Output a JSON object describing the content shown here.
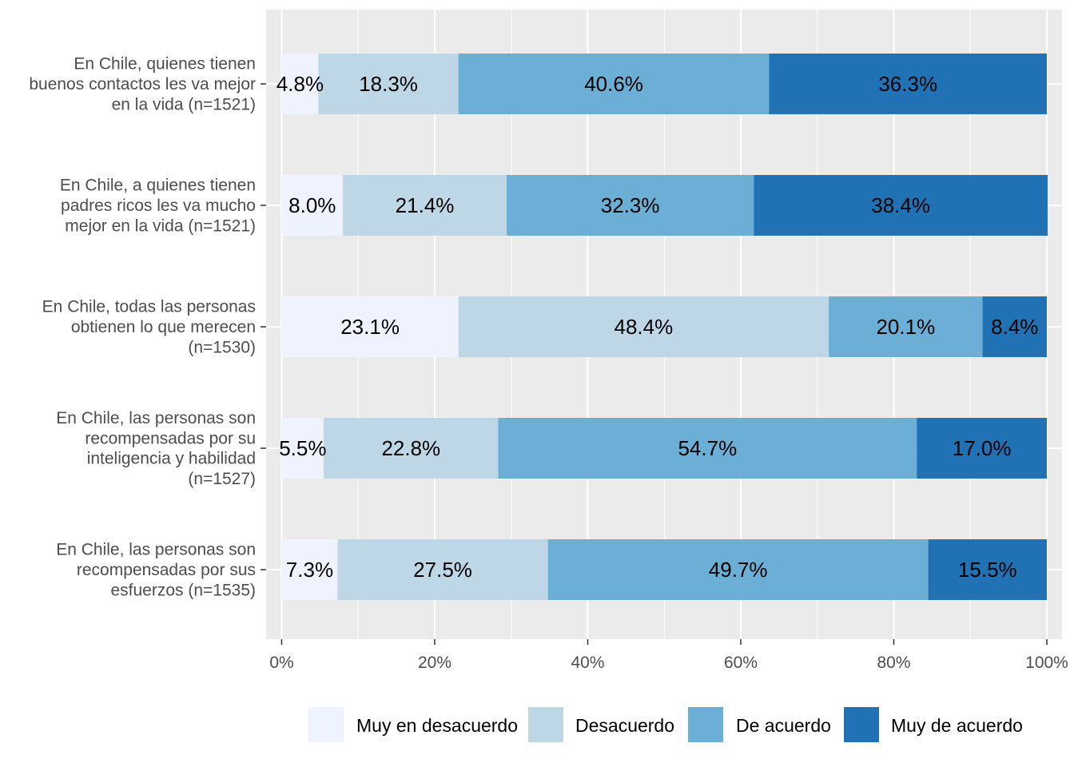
{
  "chart_data": {
    "type": "bar",
    "orientation": "horizontal",
    "stacked": true,
    "title": "",
    "xlabel": "",
    "ylabel": "",
    "xlim": [
      0,
      100
    ],
    "grid": true,
    "legend_position": "bottom",
    "x_ticks": [
      "0%",
      "20%",
      "40%",
      "60%",
      "80%",
      "100%"
    ],
    "categories": [
      [
        "En Chile, quienes tienen",
        "buenos contactos les va mejor",
        "en la vida (n=1521)"
      ],
      [
        "En Chile, a quienes tienen",
        "padres ricos les va mucho",
        "mejor en la vida (n=1521)"
      ],
      [
        "En Chile, todas las personas",
        "obtienen lo que merecen",
        "(n=1530)"
      ],
      [
        "En Chile, las personas son",
        "recompensadas por su",
        "inteligencia y habilidad",
        "(n=1527)"
      ],
      [
        "En Chile, las personas son",
        "recompensadas por sus",
        "esfuerzos (n=1535)"
      ]
    ],
    "series": [
      {
        "name": "Muy en desacuerdo",
        "color": "#eff3ff",
        "values": [
          4.8,
          8.0,
          23.1,
          5.5,
          7.3
        ],
        "labels": [
          "4.8%",
          "8.0%",
          "23.1%",
          "5.5%",
          "7.3%"
        ]
      },
      {
        "name": "Desacuerdo",
        "color": "#bdd7e7",
        "values": [
          18.3,
          21.4,
          48.4,
          22.8,
          27.5
        ],
        "labels": [
          "18.3%",
          "21.4%",
          "48.4%",
          "22.8%",
          "27.5%"
        ]
      },
      {
        "name": "De acuerdo",
        "color": "#6baed6",
        "values": [
          40.6,
          32.3,
          20.1,
          54.7,
          49.7
        ],
        "labels": [
          "40.6%",
          "32.3%",
          "20.1%",
          "54.7%",
          "49.7%"
        ]
      },
      {
        "name": "Muy de acuerdo",
        "color": "#2171b5",
        "values": [
          36.3,
          38.4,
          8.4,
          17.0,
          15.5
        ],
        "labels": [
          "36.3%",
          "38.4%",
          "8.4%",
          "17.0%",
          "15.5%"
        ]
      }
    ]
  }
}
